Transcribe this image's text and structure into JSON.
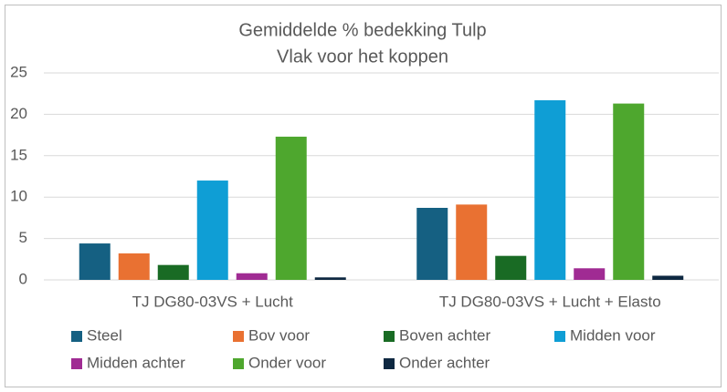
{
  "chart_data": {
    "type": "bar",
    "title": "Gemiddelde % bedekking Tulp",
    "subtitle": "Vlak voor het koppen",
    "categories": [
      "TJ DG80-03VS + Lucht",
      "TJ DG80-03VS + Lucht + Elasto"
    ],
    "series": [
      {
        "name": "Steel",
        "color": "#156082",
        "values": [
          4.4,
          8.7
        ]
      },
      {
        "name": "Bov voor",
        "color": "#e97132",
        "values": [
          3.2,
          9.1
        ]
      },
      {
        "name": "Boven achter",
        "color": "#196b24",
        "values": [
          1.8,
          2.9
        ]
      },
      {
        "name": "Midden voor",
        "color": "#0f9ed5",
        "values": [
          12.0,
          21.7
        ]
      },
      {
        "name": "Midden achter",
        "color": "#a02b93",
        "values": [
          0.8,
          1.4
        ]
      },
      {
        "name": "Onder voor",
        "color": "#4ea72e",
        "values": [
          17.3,
          21.3
        ]
      },
      {
        "name": "Onder achter",
        "color": "#0e2841",
        "values": [
          0.3,
          0.5
        ]
      }
    ],
    "ylim": [
      0,
      25
    ],
    "yticks": [
      0,
      5,
      10,
      15,
      20,
      25
    ],
    "grid": true,
    "legend": "bottom"
  }
}
